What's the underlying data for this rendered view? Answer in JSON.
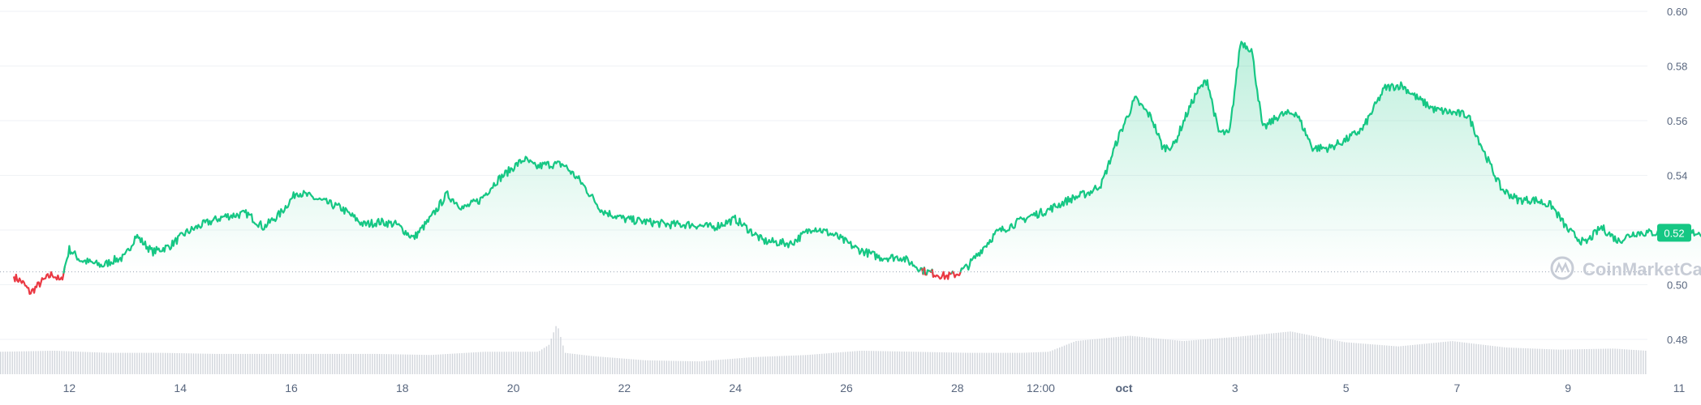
{
  "colors": {
    "up_line": "#16c784",
    "down_line": "#ea3943",
    "area_fill_top": "#16c784",
    "grid": "#eff2f5",
    "axis_text": "#58667e",
    "volume_bar": "#d1d5db",
    "price_badge_bg": "#16c784",
    "price_badge_text": "#ffffff",
    "watermark": "#c7ccd6",
    "baseline_dots": "#9aa3b2"
  },
  "watermark_text": "CoinMarketCap",
  "current_price_label": "0.52",
  "chart_data": {
    "type": "area",
    "title": "",
    "xlabel": "",
    "ylabel": "",
    "ylim": [
      0.47,
      0.6
    ],
    "y_ticks": [
      "0.60",
      "0.58",
      "0.56",
      "0.54",
      "0.52",
      "0.50",
      "0.48"
    ],
    "y_tick_values": [
      0.6,
      0.58,
      0.56,
      0.54,
      0.52,
      0.5,
      0.48
    ],
    "x_ticks": [
      "12",
      "14",
      "16",
      "18",
      "20",
      "22",
      "24",
      "26",
      "28",
      "12:00",
      "oct",
      "3",
      "5",
      "7",
      "9",
      "11"
    ],
    "x_tick_days": [
      1,
      3,
      5,
      7,
      9,
      11,
      13,
      15,
      17,
      18.5,
      20,
      22,
      24,
      26,
      28,
      30
    ],
    "baseline_price": 0.5047,
    "grid": true,
    "series": [
      {
        "values_x_days": [
          0.0,
          0.15,
          0.3,
          0.5,
          0.7,
          0.85,
          1.0,
          1.2,
          1.4,
          1.6,
          1.8,
          2.0,
          2.2,
          2.5,
          2.8,
          3.1,
          3.4,
          3.8,
          4.2,
          4.5,
          4.8,
          5.1,
          5.5,
          5.9,
          6.3,
          6.6,
          6.9,
          7.2,
          7.5,
          7.8,
          8.1,
          8.4,
          8.7,
          9.0,
          9.2,
          9.4,
          9.6,
          9.9,
          10.2,
          10.6,
          11.0,
          11.4,
          11.8,
          12.2,
          12.6,
          13.0,
          13.5,
          14.0,
          14.4,
          14.8,
          15.2,
          15.6,
          16.0,
          16.4,
          16.8,
          17.0,
          17.2,
          17.4,
          17.7,
          18.0,
          18.3,
          18.6,
          19.0,
          19.4,
          19.6,
          19.9,
          20.2,
          20.5,
          20.7,
          20.9,
          21.1,
          21.3,
          21.5,
          21.7,
          21.9,
          22.1,
          22.3,
          22.5,
          22.8,
          23.1,
          23.4,
          23.7,
          24.0,
          24.3,
          24.7,
          25.0,
          25.3,
          25.6,
          25.9,
          26.2,
          26.5,
          26.8,
          27.1,
          27.4,
          27.7,
          28.0,
          28.3,
          28.6,
          28.9,
          29.2,
          29.5,
          29.8,
          30.1,
          30.4,
          30.6
        ],
        "values": [
          0.503,
          0.501,
          0.497,
          0.501,
          0.504,
          0.501,
          0.513,
          0.509,
          0.508,
          0.507,
          0.509,
          0.51,
          0.518,
          0.512,
          0.514,
          0.519,
          0.522,
          0.525,
          0.526,
          0.521,
          0.526,
          0.534,
          0.531,
          0.528,
          0.522,
          0.523,
          0.522,
          0.517,
          0.524,
          0.533,
          0.528,
          0.531,
          0.538,
          0.543,
          0.546,
          0.543,
          0.544,
          0.544,
          0.538,
          0.527,
          0.524,
          0.523,
          0.522,
          0.522,
          0.521,
          0.524,
          0.516,
          0.515,
          0.521,
          0.518,
          0.513,
          0.51,
          0.51,
          0.505,
          0.503,
          0.504,
          0.507,
          0.512,
          0.519,
          0.522,
          0.525,
          0.527,
          0.531,
          0.534,
          0.537,
          0.554,
          0.568,
          0.561,
          0.55,
          0.551,
          0.561,
          0.57,
          0.575,
          0.556,
          0.555,
          0.589,
          0.586,
          0.557,
          0.562,
          0.563,
          0.55,
          0.55,
          0.553,
          0.557,
          0.572,
          0.573,
          0.568,
          0.564,
          0.563,
          0.562,
          0.548,
          0.535,
          0.531,
          0.531,
          0.529,
          0.52,
          0.515,
          0.521,
          0.516,
          0.519,
          0.519,
          0.519,
          0.519,
          0.519,
          0.519
        ]
      }
    ],
    "volume": {
      "x_days": [
        0.0,
        1.0,
        2.0,
        3.0,
        4.0,
        5.0,
        6.0,
        7.0,
        8.0,
        9.0,
        10.0,
        10.2,
        10.35,
        10.5,
        11.0,
        12.0,
        13.0,
        14.0,
        15.0,
        16.0,
        17.0,
        18.0,
        19.0,
        19.5,
        20.0,
        21.0,
        22.0,
        23.0,
        24.0,
        25.0,
        26.0,
        27.0,
        28.0,
        29.0,
        30.0,
        30.6
      ],
      "values": [
        0.42,
        0.44,
        0.4,
        0.4,
        0.38,
        0.38,
        0.38,
        0.38,
        0.36,
        0.42,
        0.42,
        0.55,
        0.95,
        0.4,
        0.34,
        0.26,
        0.24,
        0.32,
        0.36,
        0.44,
        0.42,
        0.4,
        0.4,
        0.42,
        0.62,
        0.72,
        0.62,
        0.7,
        0.8,
        0.6,
        0.52,
        0.62,
        0.5,
        0.46,
        0.48,
        0.44
      ]
    }
  }
}
